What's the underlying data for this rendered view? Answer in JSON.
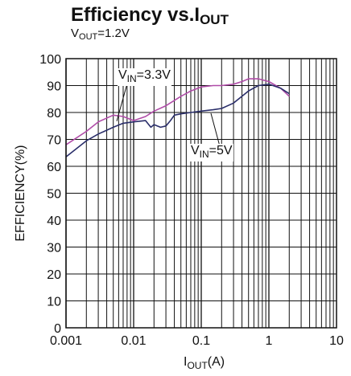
{
  "chart_data": {
    "type": "line",
    "title": {
      "main": "Efficiency vs.I",
      "sub": "OUT"
    },
    "subtitle": {
      "pre": "V",
      "sub": "OUT",
      "post": "=1.2V"
    },
    "xlabel": {
      "pre": "I",
      "sub": "OUT",
      "post": "(A)"
    },
    "ylabel": "EFFICIENCY(%)",
    "x_scale": "log",
    "xlim": [
      0.001,
      10
    ],
    "ylim": [
      0,
      100
    ],
    "x_ticks": [
      "0.001",
      "0.01",
      "0.1",
      "1",
      "10"
    ],
    "y_ticks": [
      "0",
      "10",
      "20",
      "30",
      "40",
      "50",
      "60",
      "70",
      "80",
      "90",
      "100"
    ],
    "grid": true,
    "series": [
      {
        "name": {
          "pre": "V",
          "sub": "IN",
          "post": "=3.3V"
        },
        "color": "#b04ca8",
        "x": [
          0.001,
          0.002,
          0.003,
          0.005,
          0.007,
          0.01,
          0.015,
          0.02,
          0.03,
          0.05,
          0.07,
          0.1,
          0.15,
          0.2,
          0.3,
          0.4,
          0.5,
          0.7,
          1.0,
          1.5,
          2.0
        ],
        "y": [
          68,
          73,
          76.5,
          79,
          78.5,
          77,
          78.5,
          80.5,
          82.5,
          86,
          88,
          89.5,
          90,
          90,
          90.5,
          91.5,
          92.5,
          92.5,
          91.5,
          89,
          86
        ]
      },
      {
        "name": {
          "pre": "V",
          "sub": "IN",
          "post": "=5V"
        },
        "color": "#2a2e6a",
        "x": [
          0.001,
          0.002,
          0.003,
          0.005,
          0.007,
          0.01,
          0.015,
          0.018,
          0.02,
          0.025,
          0.03,
          0.035,
          0.04,
          0.05,
          0.07,
          0.1,
          0.15,
          0.2,
          0.3,
          0.5,
          0.7,
          1.0,
          1.5,
          2.0
        ],
        "y": [
          63.5,
          69.5,
          72,
          74.5,
          76,
          76.5,
          77,
          74.5,
          75.5,
          74.5,
          75,
          77,
          79,
          79.5,
          80,
          80.5,
          81,
          81.5,
          83.5,
          88,
          90,
          90.5,
          89,
          87
        ]
      }
    ]
  }
}
